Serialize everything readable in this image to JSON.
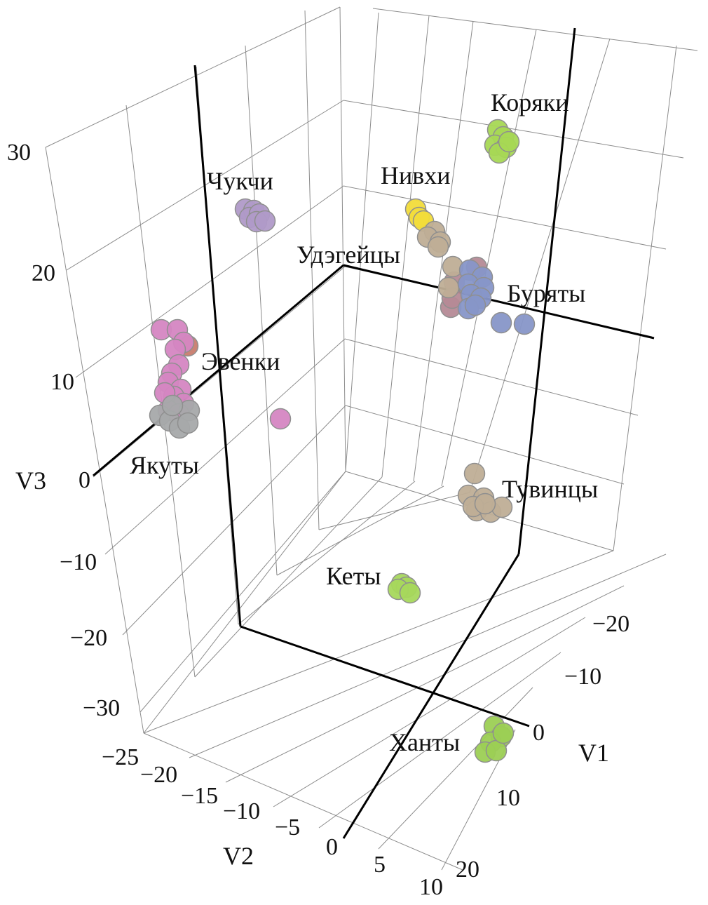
{
  "chart_data": {
    "type": "scatter",
    "dimensions": 3,
    "title": "",
    "axes": {
      "x": {
        "label": "V1",
        "ticks": [
          "−20",
          "−10",
          "0",
          "10",
          "20"
        ]
      },
      "y": {
        "label": "V2",
        "ticks": [
          "−25",
          "−20",
          "−15",
          "−10",
          "−5",
          "0",
          "5",
          "10"
        ]
      },
      "z": {
        "label": "V3",
        "ticks": [
          "30",
          "20",
          "10",
          "0",
          "−10",
          "−20",
          "−30"
        ]
      }
    },
    "grid": true,
    "clusters": [
      {
        "label": "Коряки",
        "color": "#a6d854",
        "n": 6
      },
      {
        "label": "Чукчи",
        "color": "#b09ac8",
        "n": 6
      },
      {
        "label": "Нивхи",
        "color": "#f2dc3a",
        "n": 3
      },
      {
        "label": "Удэгейцы",
        "color": "#bfae96",
        "n": 6
      },
      {
        "label": "Буряты",
        "color": "#8796c8",
        "n": 10
      },
      {
        "label": "Эвенки",
        "color": "#d586c2",
        "n": 14
      },
      {
        "label": "Якуты",
        "color": "#a6a9aa",
        "n": 6
      },
      {
        "label": "Тувинцы",
        "color": "#bfae96",
        "n": 8
      },
      {
        "label": "Кеты",
        "color": "#a6d85c",
        "n": 4
      },
      {
        "label": "Ханты",
        "color": "#9ccf54",
        "n": 6
      }
    ],
    "extra_colors": {
      "mauve": "#b58a96",
      "rust": "#c87c6e"
    }
  }
}
